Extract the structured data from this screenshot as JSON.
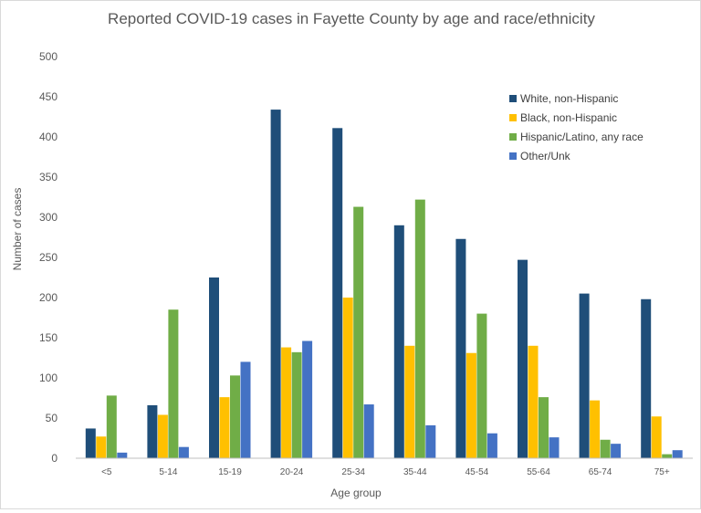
{
  "chart_data": {
    "type": "bar",
    "title": "Reported COVID-19 cases in Fayette County by age and race/ethnicity",
    "xlabel": "Age group",
    "ylabel": "Number of cases",
    "ylim": [
      0,
      500
    ],
    "yticks": [
      0,
      50,
      100,
      150,
      200,
      250,
      300,
      350,
      400,
      450,
      500
    ],
    "grid": false,
    "legend_position": "top-right",
    "categories": [
      "<5",
      "5-14",
      "15-19",
      "20-24",
      "25-34",
      "35-44",
      "45-54",
      "55-64",
      "65-74",
      "75+"
    ],
    "series": [
      {
        "name": "White, non-Hispanic",
        "color": "#1f4e79",
        "values": [
          37,
          66,
          225,
          434,
          411,
          290,
          273,
          247,
          205,
          198
        ]
      },
      {
        "name": "Black, non-Hispanic",
        "color": "#ffc000",
        "values": [
          27,
          54,
          76,
          138,
          200,
          140,
          131,
          140,
          72,
          52
        ]
      },
      {
        "name": "Hispanic/Latino, any race",
        "color": "#70ad47",
        "values": [
          78,
          185,
          103,
          132,
          313,
          322,
          180,
          76,
          23,
          5
        ]
      },
      {
        "name": "Other/Unk",
        "color": "#4472c4",
        "values": [
          7,
          14,
          120,
          146,
          67,
          41,
          31,
          26,
          18,
          10
        ]
      }
    ]
  }
}
